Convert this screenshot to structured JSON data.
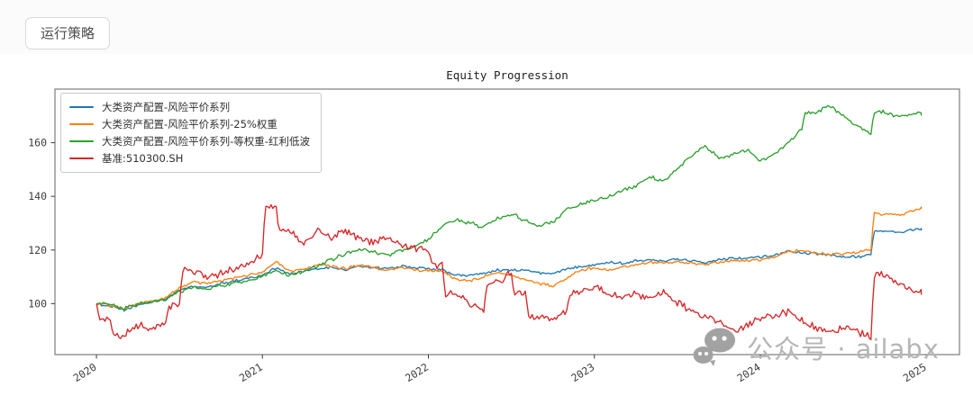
{
  "toolbar": {
    "run_button_label": "运行策略"
  },
  "watermark": {
    "text": "公众号 · ailabx",
    "icon": "wechat-icon",
    "color": "#9f9f9f"
  },
  "chart_data": {
    "type": "line",
    "title": "Equity Progression",
    "x_ticks": [
      2020,
      2021,
      2022,
      2023,
      2024,
      2025
    ],
    "y_ticks": [
      100,
      120,
      140,
      160
    ],
    "xlim": [
      2019.75,
      2025.2
    ],
    "ylim": [
      81,
      180
    ],
    "grid": false,
    "legend_position": "upper-left",
    "x_start": 2020.0,
    "x_step_years": 0.0833333,
    "x_end": 2024.97,
    "series": [
      {
        "name": "大类资产配置-风险平价系列",
        "color": "#1f77b4",
        "noise": 0.38,
        "values": [
          100,
          99,
          97.5,
          99.5,
          100.5,
          101.5,
          105,
          106.5,
          106,
          107.5,
          108.5,
          109.5,
          110.5,
          113.5,
          111,
          112,
          113,
          113.5,
          112.5,
          114,
          113.5,
          113,
          114,
          113.5,
          113,
          112.5,
          110.5,
          110.5,
          111.5,
          112.5,
          112.5,
          112.5,
          111.5,
          111,
          113,
          114,
          114.5,
          115.5,
          115,
          116,
          116.5,
          116,
          116.5,
          116,
          115.5,
          116.5,
          117,
          117,
          117.5,
          118,
          119.5,
          119,
          118.5,
          118,
          117.5,
          117.5,
          118,
          127,
          126.5,
          127.5,
          128
        ]
      },
      {
        "name": "大类资产配置-风险平价系列-25%权重",
        "color": "#ff7f0e",
        "noise": 0.42,
        "values": [
          100,
          99.5,
          98,
          100,
          101,
          102,
          106,
          108,
          107.5,
          108.5,
          109.5,
          110.5,
          111.5,
          115.5,
          112,
          113,
          114.5,
          114,
          113,
          114.5,
          113.5,
          112.5,
          113.5,
          112.5,
          112.5,
          112,
          109,
          108.5,
          110,
          111.5,
          110.5,
          109,
          107.5,
          106.5,
          109.5,
          112.5,
          113.5,
          112.5,
          113.5,
          114.5,
          115.5,
          115,
          115.5,
          115,
          114.5,
          115.5,
          116,
          116,
          116.5,
          117.5,
          119.5,
          119.5,
          119,
          118.5,
          118.5,
          119,
          120,
          133.5,
          133,
          134.5,
          136
        ]
      },
      {
        "name": "大类资产配置-风险平价系列-等权重-红利低波",
        "color": "#2ca02c",
        "noise": 0.55,
        "values": [
          100,
          99.5,
          98,
          100,
          100.5,
          101.5,
          104.5,
          106,
          105.5,
          106.5,
          107.5,
          109,
          110,
          112.5,
          110.5,
          112,
          114,
          116.5,
          118.5,
          120,
          119.5,
          118,
          119.5,
          121,
          124,
          129,
          131.5,
          130,
          128.5,
          132,
          133.5,
          131,
          129,
          130.5,
          135,
          137,
          138.5,
          140,
          142,
          144,
          147.5,
          145.5,
          150,
          155,
          158.5,
          154.5,
          155.5,
          157.5,
          153,
          156,
          160,
          165,
          171,
          174,
          170,
          166.5,
          163.5,
          171.5,
          169.5,
          171,
          170.5
        ]
      },
      {
        "name": "基准:510300.SH",
        "color": "#d62728",
        "noise": 1.05,
        "values": [
          100,
          94,
          88,
          92,
          90.5,
          93,
          99,
          112.5,
          110,
          111,
          113,
          115.5,
          118.5,
          136,
          127,
          122,
          127,
          124,
          127.5,
          124.5,
          123,
          124.5,
          122,
          120.5,
          120,
          114.5,
          104,
          99.5,
          98,
          108,
          111.5,
          104,
          95,
          93.5,
          97.5,
          104,
          106,
          104,
          101.5,
          103.5,
          102.5,
          104,
          100.5,
          97.5,
          95,
          93.5,
          89.5,
          92,
          94,
          95.5,
          97,
          94,
          91,
          89.5,
          91,
          89.5,
          87.5,
          111,
          107,
          105,
          104
        ]
      }
    ]
  }
}
